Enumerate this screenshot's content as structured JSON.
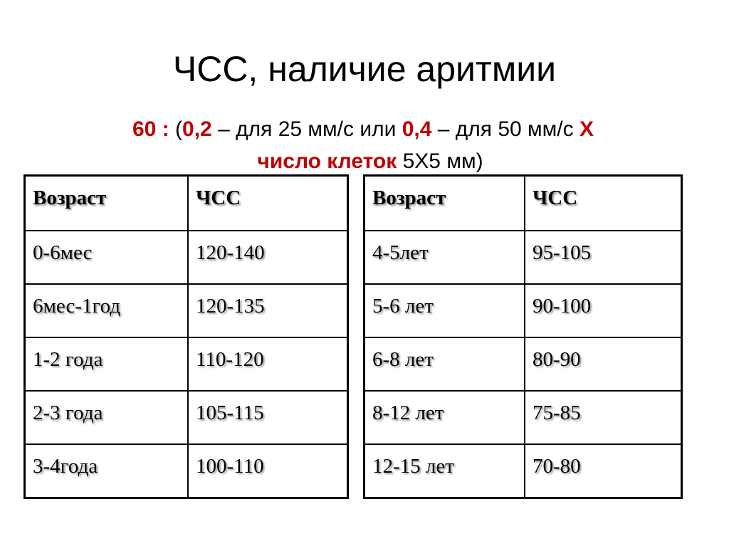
{
  "title": "ЧСС, наличие аритмии",
  "formula": {
    "p1": "60 : ",
    "p2": "(",
    "p3": "0,2",
    "p4": " – для 25 мм/с или ",
    "p5": "0,4",
    "p6": " – для 50 мм/с ",
    "p7": "Х",
    "p8": "число клеток",
    "p9": " 5Х5 мм)"
  },
  "colors": {
    "accent": "#c00000"
  },
  "tables": [
    {
      "headers": [
        "Возраст",
        "ЧСС"
      ],
      "rows": [
        [
          "0-6мес",
          "120-140"
        ],
        [
          "6мес-1год",
          "120-135"
        ],
        [
          "1-2 года",
          "110-120"
        ],
        [
          "2-3 года",
          "105-115"
        ],
        [
          "3-4года",
          "100-110"
        ]
      ]
    },
    {
      "headers": [
        "Возраст",
        "ЧСС"
      ],
      "rows": [
        [
          "4-5лет",
          "95-105"
        ],
        [
          "5-6 лет",
          "90-100"
        ],
        [
          "6-8 лет",
          "80-90"
        ],
        [
          "8-12 лет",
          "75-85"
        ],
        [
          "12-15 лет",
          "70-80"
        ]
      ]
    }
  ]
}
